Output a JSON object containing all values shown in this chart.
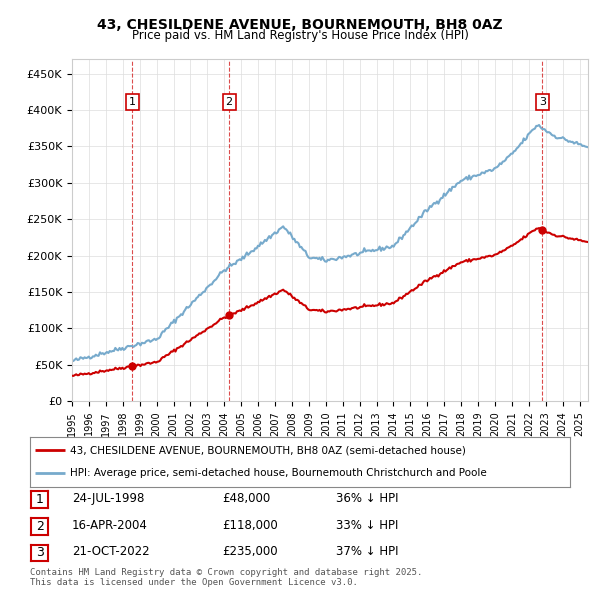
{
  "title": "43, CHESILDENE AVENUE, BOURNEMOUTH, BH8 0AZ",
  "subtitle": "Price paid vs. HM Land Registry's House Price Index (HPI)",
  "ylabel_ticks": [
    "£0",
    "£50K",
    "£100K",
    "£150K",
    "£200K",
    "£250K",
    "£300K",
    "£350K",
    "£400K",
    "£450K"
  ],
  "ytick_vals": [
    0,
    50000,
    100000,
    150000,
    200000,
    250000,
    300000,
    350000,
    400000,
    450000
  ],
  "ylim": [
    0,
    470000
  ],
  "xlim_start": 1995.0,
  "xlim_end": 2025.5,
  "sale_dates": [
    1998.56,
    2004.29,
    2022.8
  ],
  "sale_prices": [
    48000,
    118000,
    235000
  ],
  "sale_labels": [
    "1",
    "2",
    "3"
  ],
  "sale_vline_color": "#cc0000",
  "sale_dot_color": "#cc0000",
  "hpi_color": "#77aacc",
  "price_color": "#cc0000",
  "legend_label_price": "43, CHESILDENE AVENUE, BOURNEMOUTH, BH8 0AZ (semi-detached house)",
  "legend_label_hpi": "HPI: Average price, semi-detached house, Bournemouth Christchurch and Poole",
  "table_rows": [
    [
      "1",
      "24-JUL-1998",
      "£48,000",
      "36% ↓ HPI"
    ],
    [
      "2",
      "16-APR-2004",
      "£118,000",
      "33% ↓ HPI"
    ],
    [
      "3",
      "21-OCT-2022",
      "£235,000",
      "37% ↓ HPI"
    ]
  ],
  "footnote": "Contains HM Land Registry data © Crown copyright and database right 2025.\nThis data is licensed under the Open Government Licence v3.0.",
  "bg_color": "#ffffff",
  "grid_color": "#dddddd",
  "axis_color": "#cccccc"
}
